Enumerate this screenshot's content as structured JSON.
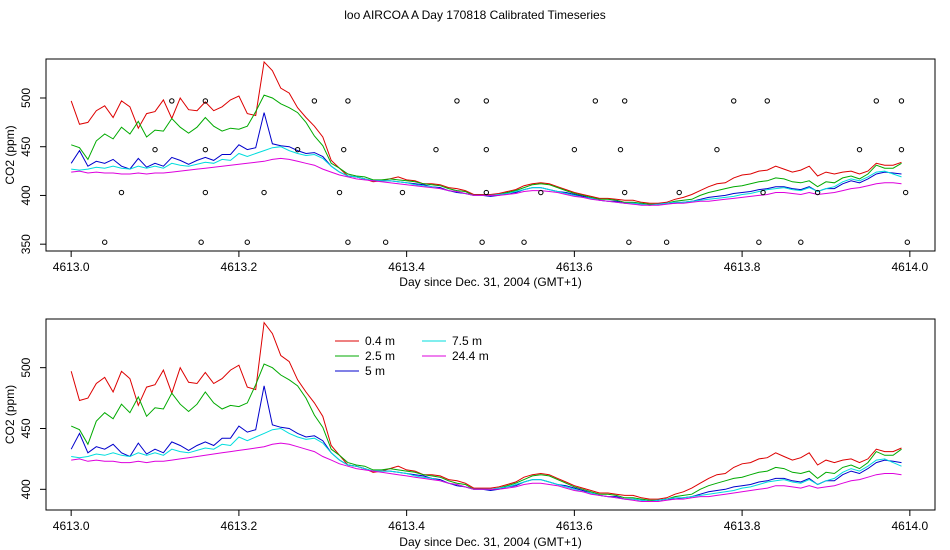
{
  "figure": {
    "title": "loo AIRCOA A  Day 170818  Calibrated Timeseries"
  },
  "chart_data": [
    {
      "type": "line",
      "xlabel": "Day since Dec. 31, 2004 (GMT+1)",
      "ylabel": "CO2 (ppm)",
      "xlim": [
        4612.97,
        4614.03
      ],
      "ylim": [
        343,
        540
      ],
      "xticks": [
        "4613.0",
        "4613.2",
        "4613.4",
        "4613.6",
        "4613.8",
        "4614.0"
      ],
      "yticks": [
        "350",
        "400",
        "450",
        "500"
      ],
      "grid": false,
      "legend": "none",
      "x": [
        4613.0,
        4613.01,
        4613.02,
        4613.03,
        4613.04,
        4613.05,
        4613.06,
        4613.07,
        4613.08,
        4613.09,
        4613.1,
        4613.11,
        4613.12,
        4613.13,
        4613.14,
        4613.15,
        4613.16,
        4613.17,
        4613.18,
        4613.19,
        4613.2,
        4613.21,
        4613.22,
        4613.23,
        4613.24,
        4613.25,
        4613.26,
        4613.27,
        4613.28,
        4613.29,
        4613.3,
        4613.31,
        4613.32,
        4613.33,
        4613.34,
        4613.35,
        4613.36,
        4613.37,
        4613.38,
        4613.39,
        4613.4,
        4613.41,
        4613.42,
        4613.43,
        4613.44,
        4613.45,
        4613.46,
        4613.47,
        4613.48,
        4613.49,
        4613.5,
        4613.51,
        4613.52,
        4613.53,
        4613.54,
        4613.55,
        4613.56,
        4613.57,
        4613.58,
        4613.59,
        4613.6,
        4613.61,
        4613.62,
        4613.63,
        4613.64,
        4613.65,
        4613.66,
        4613.67,
        4613.68,
        4613.69,
        4613.7,
        4613.71,
        4613.72,
        4613.73,
        4613.74,
        4613.75,
        4613.76,
        4613.77,
        4613.78,
        4613.79,
        4613.8,
        4613.81,
        4613.82,
        4613.83,
        4613.84,
        4613.85,
        4613.86,
        4613.87,
        4613.88,
        4613.89,
        4613.9,
        4613.91,
        4613.92,
        4613.93,
        4613.94,
        4613.95,
        4613.96,
        4613.97,
        4613.98,
        4613.99
      ],
      "series": [
        {
          "color": "#dd0000",
          "values": [
            497,
            473,
            475,
            487,
            492,
            480,
            497,
            491,
            469,
            484,
            486,
            498,
            479,
            500,
            488,
            487,
            496,
            487,
            491,
            498,
            502,
            484,
            482,
            537,
            528,
            510,
            505,
            490,
            480,
            471,
            460,
            436,
            428,
            420,
            419,
            417,
            414,
            415,
            417,
            419,
            416,
            415,
            412,
            412,
            411,
            408,
            407,
            405,
            401,
            401,
            401,
            402,
            404,
            406,
            410,
            412,
            413,
            412,
            409,
            406,
            403,
            401,
            399,
            397,
            397,
            396,
            395,
            395,
            393,
            392,
            392,
            393,
            396,
            398,
            401,
            405,
            409,
            412,
            413,
            418,
            421,
            422,
            425,
            426,
            430,
            427,
            424,
            426,
            430,
            420,
            424,
            422,
            424,
            425,
            422,
            425,
            433,
            431,
            431,
            434
          ]
        },
        {
          "color": "#00aa00",
          "values": [
            452,
            449,
            437,
            456,
            463,
            458,
            470,
            463,
            476,
            460,
            467,
            466,
            479,
            470,
            464,
            470,
            480,
            471,
            466,
            469,
            468,
            471,
            486,
            503,
            500,
            494,
            490,
            485,
            475,
            461,
            451,
            433,
            428,
            422,
            420,
            419,
            416,
            416,
            417,
            416,
            415,
            414,
            412,
            411,
            410,
            407,
            405,
            404,
            400,
            400,
            400,
            401,
            403,
            405,
            408,
            411,
            412,
            411,
            408,
            405,
            402,
            400,
            398,
            396,
            396,
            395,
            393,
            393,
            392,
            391,
            391,
            392,
            394,
            395,
            396,
            400,
            403,
            405,
            407,
            409,
            410,
            412,
            414,
            415,
            418,
            417,
            414,
            413,
            415,
            409,
            414,
            413,
            418,
            420,
            417,
            422,
            431,
            428,
            428,
            433
          ]
        },
        {
          "color": "#0000cc",
          "values": [
            433,
            446,
            430,
            435,
            433,
            437,
            430,
            427,
            438,
            429,
            433,
            430,
            439,
            436,
            432,
            436,
            439,
            436,
            442,
            442,
            452,
            447,
            449,
            485,
            453,
            451,
            450,
            446,
            443,
            444,
            440,
            430,
            424,
            420,
            419,
            417,
            415,
            415,
            415,
            414,
            413,
            412,
            411,
            409,
            408,
            405,
            403,
            402,
            400,
            400,
            399,
            400,
            402,
            403,
            406,
            408,
            408,
            406,
            404,
            403,
            401,
            399,
            397,
            395,
            394,
            394,
            392,
            392,
            391,
            390,
            391,
            392,
            392,
            393,
            394,
            396,
            398,
            399,
            400,
            402,
            403,
            404,
            406,
            407,
            409,
            409,
            407,
            406,
            409,
            404,
            407,
            407,
            412,
            415,
            413,
            417,
            422,
            424,
            423,
            422
          ]
        },
        {
          "color": "#00dddd",
          "values": [
            427,
            426,
            427,
            429,
            428,
            430,
            428,
            427,
            430,
            428,
            430,
            428,
            433,
            431,
            430,
            432,
            434,
            433,
            437,
            436,
            443,
            440,
            443,
            446,
            449,
            450,
            446,
            443,
            441,
            442,
            438,
            430,
            424,
            420,
            419,
            417,
            415,
            415,
            415,
            414,
            413,
            411,
            410,
            409,
            407,
            405,
            404,
            402,
            400,
            400,
            400,
            401,
            402,
            404,
            406,
            408,
            408,
            406,
            404,
            402,
            400,
            398,
            397,
            395,
            394,
            393,
            392,
            392,
            391,
            390,
            391,
            392,
            393,
            393,
            394,
            395,
            396,
            397,
            398,
            399,
            401,
            402,
            404,
            406,
            407,
            408,
            406,
            405,
            408,
            404,
            407,
            409,
            414,
            417,
            415,
            419,
            424,
            425,
            422,
            419
          ]
        },
        {
          "color": "#dd00dd",
          "values": [
            424,
            425,
            423,
            424,
            423,
            423,
            422,
            422,
            423,
            422,
            423,
            423,
            424,
            425,
            426,
            427,
            428,
            429,
            430,
            431,
            432,
            433,
            434,
            435,
            437,
            438,
            437,
            435,
            433,
            431,
            427,
            424,
            421,
            419,
            417,
            416,
            415,
            414,
            413,
            412,
            411,
            410,
            409,
            408,
            407,
            405,
            404,
            402,
            400,
            400,
            400,
            400,
            401,
            402,
            404,
            405,
            405,
            404,
            403,
            401,
            399,
            398,
            396,
            395,
            394,
            393,
            392,
            391,
            390,
            390,
            390,
            391,
            392,
            392,
            393,
            394,
            394,
            395,
            396,
            397,
            398,
            399,
            400,
            401,
            403,
            403,
            402,
            401,
            403,
            401,
            402,
            403,
            405,
            407,
            408,
            410,
            412,
            413,
            413,
            412
          ]
        }
      ],
      "markers": {
        "x": [
          4613.04,
          4613.06,
          4613.1,
          4613.12,
          4613.155,
          4613.16,
          4613.16,
          4613.16,
          4613.21,
          4613.23,
          4613.27,
          4613.29,
          4613.32,
          4613.325,
          4613.33,
          4613.33,
          4613.375,
          4613.395,
          4613.435,
          4613.46,
          4613.49,
          4613.495,
          4613.495,
          4613.495,
          4613.54,
          4613.56,
          4613.6,
          4613.625,
          4613.655,
          4613.66,
          4613.66,
          4613.665,
          4613.71,
          4613.725,
          4613.77,
          4613.79,
          4613.82,
          4613.825,
          4613.83,
          4613.87,
          4613.89,
          4613.94,
          4613.96,
          4613.99,
          4613.99,
          4613.995,
          4613.997
        ],
        "y": [
          352,
          403,
          447,
          497,
          352,
          403,
          447,
          497,
          352,
          403,
          447,
          497,
          403,
          447,
          352,
          497,
          352,
          403,
          447,
          497,
          352,
          403,
          447,
          497,
          352,
          403,
          447,
          497,
          447,
          497,
          403,
          352,
          352,
          403,
          447,
          497,
          352,
          403,
          497,
          352,
          403,
          447,
          497,
          497,
          447,
          403,
          352
        ]
      }
    },
    {
      "type": "line",
      "xlabel": "Day since Dec. 31, 2004 (GMT+1)",
      "ylabel": "CO2 (ppm)",
      "xlim": [
        4612.97,
        4614.03
      ],
      "ylim": [
        383,
        540
      ],
      "xticks": [
        "4613.0",
        "4613.2",
        "4613.4",
        "4613.6",
        "4613.8",
        "4614.0"
      ],
      "yticks": [
        "400",
        "450",
        "500"
      ],
      "grid": false,
      "legend": "top-left",
      "legend_entries": [
        {
          "label": "0.4 m",
          "color": "#dd0000"
        },
        {
          "label": "2.5 m",
          "color": "#00aa00"
        },
        {
          "label": "5 m",
          "color": "#0000cc"
        },
        {
          "label": "7.5 m",
          "color": "#00dddd"
        },
        {
          "label": "24.4 m",
          "color": "#dd00dd"
        }
      ],
      "reuse_series_of": 0
    }
  ]
}
